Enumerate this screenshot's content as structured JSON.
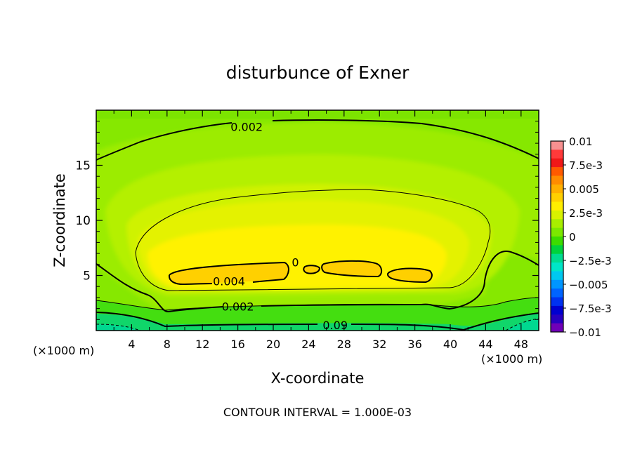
{
  "chart_data": {
    "type": "contour",
    "title": "disturbunce of Exner",
    "xlabel": "X-coordinate",
    "ylabel": "Z-coordinate",
    "x_unit": "(×1000 m)",
    "xlim": [
      0,
      50
    ],
    "ylim": [
      0,
      20
    ],
    "xticks": [
      4,
      8,
      12,
      16,
      20,
      24,
      28,
      32,
      36,
      40,
      44,
      48
    ],
    "yticks": [
      5,
      10,
      15
    ],
    "contour_interval_text": "CONTOUR INTERVAL = 1.000E-03",
    "contour_labels": [
      {
        "text": "0.002",
        "x": 17,
        "z": 18.5
      },
      {
        "text": "0.004",
        "x": 15,
        "z": 4.5
      },
      {
        "text": "0.002",
        "x": 16,
        "z": 2.2
      },
      {
        "text": "0.09",
        "x": 27,
        "z": 0.5
      },
      {
        "text": "0",
        "x": 22.5,
        "z": 6.2
      }
    ],
    "colorbar": {
      "labels": [
        "0.01",
        "7.5e-3",
        "0.005",
        "2.5e-3",
        "0",
        "−2.5e-3",
        "−0.005",
        "−7.5e-3",
        "−0.01"
      ],
      "colors": [
        "#f79090",
        "#ff3a3a",
        "#f01818",
        "#ff5a00",
        "#ff8c00",
        "#ffb000",
        "#ffd000",
        "#ffee00",
        "#d8f200",
        "#a8ee00",
        "#7ce800",
        "#3cdc00",
        "#00d23c",
        "#00dc90",
        "#00e6c8",
        "#00c8f0",
        "#0096ff",
        "#0064ff",
        "#0032f0",
        "#0000d0",
        "#2800c0",
        "#7000b8"
      ]
    },
    "field_levels": [
      {
        "name": "outer",
        "color": "#86e800"
      },
      {
        "name": "level2",
        "color": "#9cec00"
      },
      {
        "name": "level3",
        "color": "#b4f000"
      },
      {
        "name": "level4",
        "color": "#cff200"
      },
      {
        "name": "level5",
        "color": "#e4f200"
      },
      {
        "name": "core",
        "color": "#fff200"
      },
      {
        "name": "max",
        "color": "#ffd200"
      },
      {
        "name": "near-ground",
        "color": "#3ede10"
      },
      {
        "name": "ground-negative",
        "color": "#10d66a"
      }
    ]
  }
}
